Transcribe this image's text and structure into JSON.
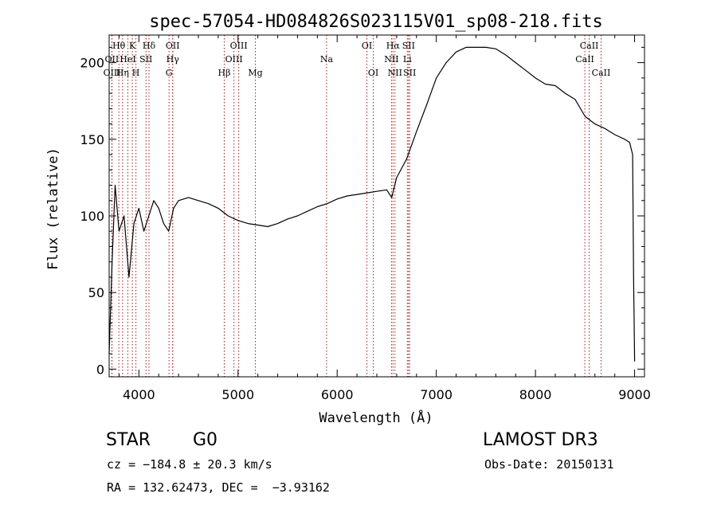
{
  "chart_data": {
    "type": "line",
    "title": "spec-57054-HD084826S023115V01_sp08-218.fits",
    "xlabel": "Wavelength (Å)",
    "ylabel": "Flux (relative)",
    "xlim": [
      3700,
      9100
    ],
    "ylim": [
      -5,
      218
    ],
    "xticks": [
      4000,
      5000,
      6000,
      7000,
      8000,
      9000
    ],
    "yticks": [
      0,
      50,
      100,
      150,
      200
    ],
    "grid": false,
    "series": [
      {
        "name": "flux",
        "points": [
          [
            3700,
            10
          ],
          [
            3730,
            70
          ],
          [
            3760,
            120
          ],
          [
            3800,
            90
          ],
          [
            3850,
            100
          ],
          [
            3900,
            60
          ],
          [
            3950,
            95
          ],
          [
            4000,
            105
          ],
          [
            4050,
            90
          ],
          [
            4100,
            100
          ],
          [
            4150,
            110
          ],
          [
            4200,
            105
          ],
          [
            4250,
            95
          ],
          [
            4300,
            90
          ],
          [
            4350,
            105
          ],
          [
            4400,
            110
          ],
          [
            4500,
            112
          ],
          [
            4600,
            110
          ],
          [
            4700,
            108
          ],
          [
            4800,
            105
          ],
          [
            4900,
            100
          ],
          [
            5000,
            97
          ],
          [
            5100,
            95
          ],
          [
            5200,
            94
          ],
          [
            5300,
            93
          ],
          [
            5400,
            95
          ],
          [
            5500,
            98
          ],
          [
            5600,
            100
          ],
          [
            5700,
            103
          ],
          [
            5800,
            106
          ],
          [
            5900,
            108
          ],
          [
            6000,
            111
          ],
          [
            6100,
            113
          ],
          [
            6200,
            114
          ],
          [
            6300,
            115
          ],
          [
            6400,
            116
          ],
          [
            6500,
            117
          ],
          [
            6550,
            112
          ],
          [
            6600,
            125
          ],
          [
            6700,
            137
          ],
          [
            6800,
            155
          ],
          [
            6900,
            172
          ],
          [
            7000,
            190
          ],
          [
            7100,
            200
          ],
          [
            7200,
            207
          ],
          [
            7300,
            210
          ],
          [
            7400,
            210
          ],
          [
            7500,
            210
          ],
          [
            7600,
            209
          ],
          [
            7700,
            205
          ],
          [
            7800,
            200
          ],
          [
            7900,
            195
          ],
          [
            8000,
            190
          ],
          [
            8100,
            186
          ],
          [
            8200,
            185
          ],
          [
            8300,
            180
          ],
          [
            8400,
            176
          ],
          [
            8500,
            165
          ],
          [
            8600,
            160
          ],
          [
            8700,
            157
          ],
          [
            8800,
            153
          ],
          [
            8900,
            150
          ],
          [
            8950,
            148
          ],
          [
            8980,
            140
          ],
          [
            8990,
            60
          ],
          [
            9000,
            5
          ]
        ]
      }
    ],
    "lines": [
      {
        "label": "Hθ",
        "x": 3798,
        "row": 1
      },
      {
        "label": "K",
        "x": 3934,
        "row": 1
      },
      {
        "label": "Hδ",
        "x": 4102,
        "row": 1
      },
      {
        "label": "OII",
        "x": 4341,
        "row": 1
      },
      {
        "label": "OIII",
        "x": 5007,
        "row": 1
      },
      {
        "label": "OI",
        "x": 6300,
        "row": 1
      },
      {
        "label": "Hα",
        "x": 6563,
        "row": 1
      },
      {
        "label": "SII",
        "x": 6720,
        "row": 1
      },
      {
        "label": "CaII",
        "x": 8542,
        "row": 1
      },
      {
        "label": "OII",
        "x": 3727,
        "row": 2
      },
      {
        "label": "HeI",
        "x": 3889,
        "row": 2
      },
      {
        "label": "SII",
        "x": 4072,
        "row": 2
      },
      {
        "label": "Hγ",
        "x": 4341,
        "row": 2
      },
      {
        "label": "OIII",
        "x": 4959,
        "row": 2
      },
      {
        "label": "Na",
        "x": 5893,
        "row": 2
      },
      {
        "label": "NII",
        "x": 6548,
        "row": 2
      },
      {
        "label": "Li",
        "x": 6708,
        "row": 2
      },
      {
        "label": "CaII",
        "x": 8498,
        "row": 2
      },
      {
        "label": "OIII",
        "x": 3729,
        "row": 3
      },
      {
        "label": "Hη",
        "x": 3835,
        "row": 3
      },
      {
        "label": "H",
        "x": 3970,
        "row": 3
      },
      {
        "label": "G",
        "x": 4304,
        "row": 3
      },
      {
        "label": "Hβ",
        "x": 4861,
        "row": 3
      },
      {
        "label": "Mg",
        "x": 5175,
        "row": 3
      },
      {
        "label": "OI",
        "x": 6364,
        "row": 3
      },
      {
        "label": "NII",
        "x": 6583,
        "row": 3
      },
      {
        "label": "SII",
        "x": 6731,
        "row": 3
      },
      {
        "label": "CaII",
        "x": 8662,
        "row": 3
      }
    ],
    "annotations": {
      "class": "STAR",
      "subclass": "G0",
      "survey": "LAMOST DR3",
      "cz": "cz = −184.8 ± 20.3 km/s",
      "obs_date": "Obs-Date: 20150131",
      "coords": "RA = 132.62473, DEC =  −3.93162"
    }
  }
}
